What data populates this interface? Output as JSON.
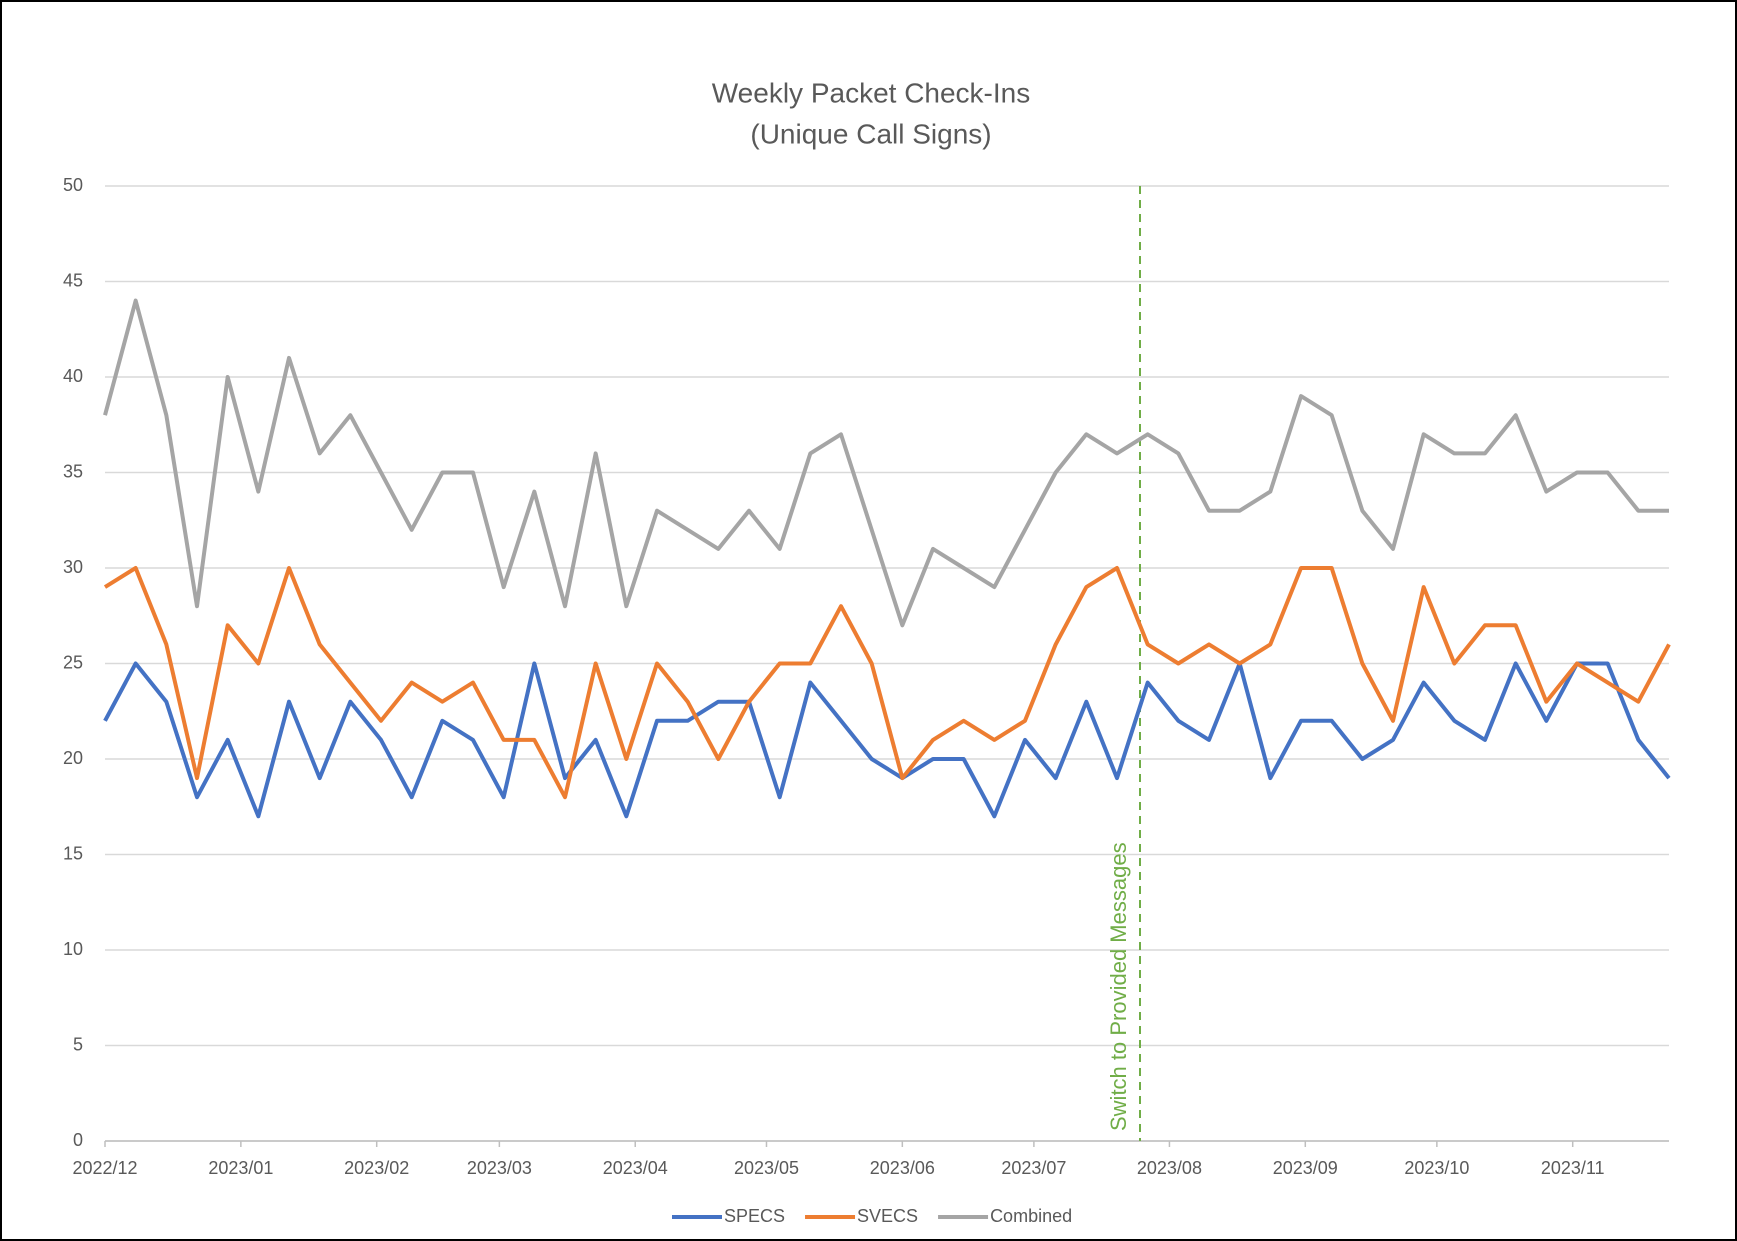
{
  "chart_data": {
    "type": "line",
    "title": "Weekly Packet Check-Ins",
    "subtitle": "(Unique Call Signs)",
    "categories": [
      null,
      null,
      null,
      null,
      null,
      null,
      null,
      null,
      null,
      null,
      null,
      null,
      null,
      null,
      null,
      null,
      null,
      null,
      null,
      null,
      null,
      null,
      null,
      null,
      null,
      null,
      null,
      null,
      null,
      null,
      null,
      null,
      null,
      null,
      null,
      null,
      null,
      null,
      null,
      null,
      null,
      null,
      null,
      null,
      null,
      null,
      null,
      null,
      null,
      null,
      null,
      null
    ],
    "series": [
      {
        "name": "SPECS",
        "color": "#4472c4",
        "values": [
          22,
          25,
          23,
          18,
          21,
          17,
          23,
          19,
          23,
          21,
          18,
          22,
          21,
          18,
          25,
          19,
          21,
          17,
          22,
          22,
          23,
          23,
          18,
          24,
          22,
          20,
          19,
          20,
          20,
          17,
          21,
          19,
          23,
          19,
          24,
          22,
          21,
          25,
          19,
          22,
          22,
          20,
          21,
          24,
          22,
          21,
          25,
          22,
          25,
          25,
          21,
          19
        ]
      },
      {
        "name": "SVECS",
        "color": "#ed7d31",
        "values": [
          29,
          30,
          26,
          19,
          27,
          25,
          30,
          26,
          24,
          22,
          24,
          23,
          24,
          21,
          21,
          18,
          25,
          20,
          25,
          23,
          20,
          23,
          25,
          25,
          28,
          25,
          19,
          21,
          22,
          21,
          22,
          26,
          29,
          30,
          26,
          25,
          26,
          25,
          26,
          30,
          30,
          25,
          22,
          29,
          25,
          27,
          27,
          23,
          25,
          24,
          23,
          26
        ]
      },
      {
        "name": "Combined",
        "color": "#a5a5a5",
        "values": [
          38,
          44,
          38,
          28,
          40,
          34,
          41,
          36,
          38,
          35,
          32,
          35,
          35,
          29,
          34,
          28,
          36,
          28,
          33,
          32,
          31,
          33,
          31,
          36,
          37,
          32,
          27,
          31,
          30,
          29,
          32,
          35,
          37,
          36,
          37,
          36,
          33,
          33,
          34,
          39,
          38,
          33,
          31,
          37,
          36,
          36,
          38,
          34,
          35,
          35,
          33,
          33
        ]
      }
    ],
    "xticks": [
      {
        "value": 0,
        "label": "2022/12"
      },
      {
        "value": 4.43,
        "label": "2023/01"
      },
      {
        "value": 8.86,
        "label": "2023/02"
      },
      {
        "value": 12.86,
        "label": "2023/03"
      },
      {
        "value": 17.29,
        "label": "2023/04"
      },
      {
        "value": 21.57,
        "label": "2023/05"
      },
      {
        "value": 26,
        "label": "2023/06"
      },
      {
        "value": 30.29,
        "label": "2023/07"
      },
      {
        "value": 34.71,
        "label": "2023/08"
      },
      {
        "value": 39.14,
        "label": "2023/09"
      },
      {
        "value": 43.43,
        "label": "2023/10"
      },
      {
        "value": 47.86,
        "label": "2023/11"
      }
    ],
    "ylim": [
      0,
      50
    ],
    "yticks": [
      0,
      5,
      10,
      15,
      20,
      25,
      30,
      35,
      40,
      45,
      50
    ],
    "grid": true,
    "annotation": {
      "text": "Switch to Provided Messages",
      "x": 33.75,
      "color": "#70ad47"
    },
    "legend": "bottom"
  }
}
